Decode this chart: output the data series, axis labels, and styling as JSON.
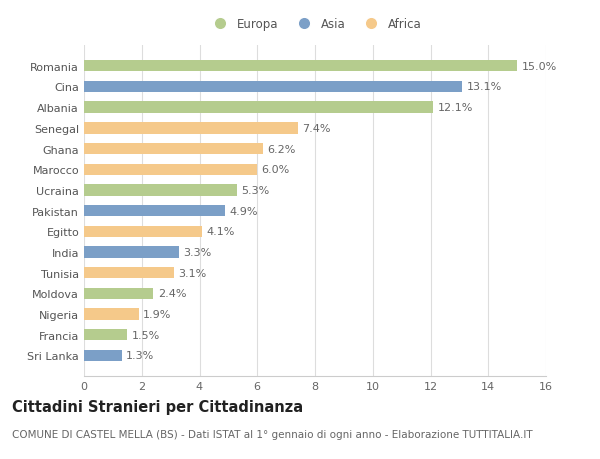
{
  "categories": [
    "Romania",
    "Cina",
    "Albania",
    "Senegal",
    "Ghana",
    "Marocco",
    "Ucraina",
    "Pakistan",
    "Egitto",
    "India",
    "Tunisia",
    "Moldova",
    "Nigeria",
    "Francia",
    "Sri Lanka"
  ],
  "values": [
    15.0,
    13.1,
    12.1,
    7.4,
    6.2,
    6.0,
    5.3,
    4.9,
    4.1,
    3.3,
    3.1,
    2.4,
    1.9,
    1.5,
    1.3
  ],
  "continents": [
    "Europa",
    "Asia",
    "Europa",
    "Africa",
    "Africa",
    "Africa",
    "Europa",
    "Asia",
    "Africa",
    "Asia",
    "Africa",
    "Europa",
    "Africa",
    "Europa",
    "Asia"
  ],
  "colors": {
    "Europa": "#b5cc8e",
    "Asia": "#7b9fc7",
    "Africa": "#f5c98a"
  },
  "xlim": [
    0,
    16
  ],
  "xticks": [
    0,
    2,
    4,
    6,
    8,
    10,
    12,
    14,
    16
  ],
  "title": "Cittadini Stranieri per Cittadinanza",
  "subtitle": "COMUNE DI CASTEL MELLA (BS) - Dati ISTAT al 1° gennaio di ogni anno - Elaborazione TUTTITALIA.IT",
  "bg_color": "#ffffff",
  "grid_color": "#dddddd",
  "bar_height": 0.55,
  "label_fontsize": 8,
  "tick_fontsize": 8,
  "ytick_fontsize": 8,
  "title_fontsize": 10.5,
  "subtitle_fontsize": 7.5
}
